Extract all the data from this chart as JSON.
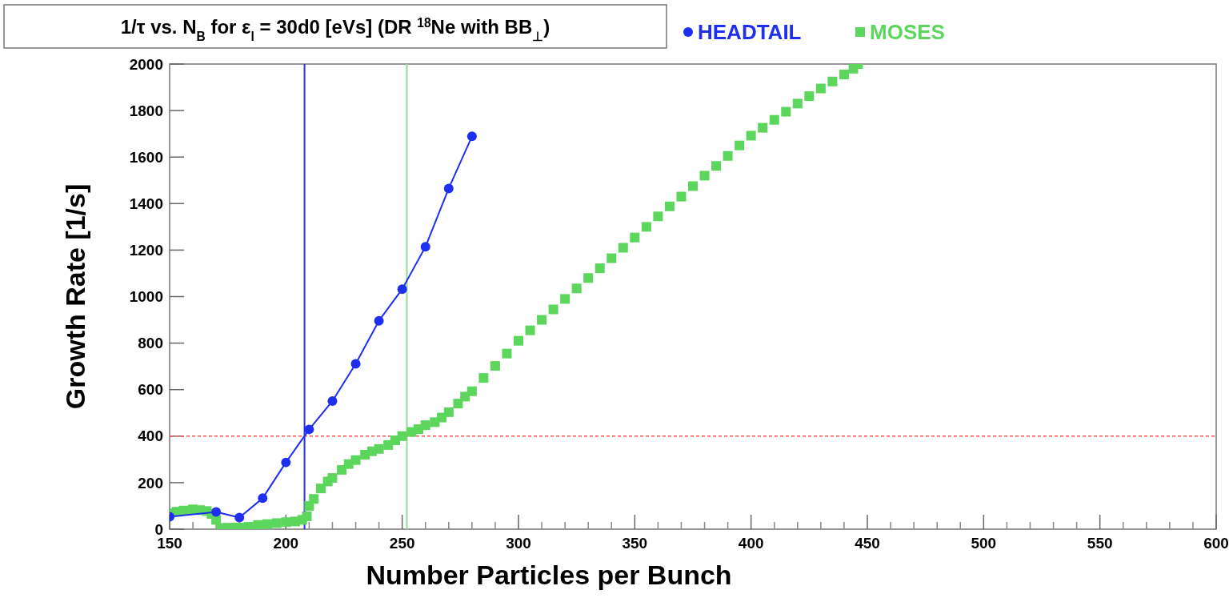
{
  "chart_data": {
    "type": "line",
    "title": "1/τ vs. N$_{B}$ for ε$_{l}$ = 30d0 [eVs] (DR $^{18}$Ne with BB$_{⊥}$)",
    "xlabel": "Number Particles per Bunch",
    "ylabel": "Growth Rate [1/s]",
    "xlim": [
      150,
      600
    ],
    "xticks": [
      150,
      200,
      250,
      300,
      350,
      400,
      450,
      500,
      550,
      600
    ],
    "ylim": [
      0,
      2000
    ],
    "yticks": [
      0,
      200,
      400,
      600,
      800,
      1000,
      1200,
      1400,
      1600,
      1800,
      2000
    ],
    "legend": "top",
    "grid": false,
    "series": [
      {
        "name": "HEADTAIL",
        "type": "line",
        "marker": "circle",
        "color": "#1f2ff0",
        "x": [
          150,
          170,
          180,
          190,
          200,
          210,
          220,
          230,
          240,
          250,
          260,
          270,
          280
        ],
        "values": [
          53,
          74,
          50,
          133,
          287,
          429,
          551,
          711,
          896,
          1032,
          1214,
          1465,
          1689
        ]
      },
      {
        "name": "MOSES",
        "type": "scatter",
        "marker": "square",
        "color": "#5cd65c",
        "x": [
          150,
          153,
          156,
          160,
          163,
          166,
          168,
          170,
          172,
          175,
          178,
          180,
          184,
          188,
          192,
          196,
          200,
          204,
          207,
          209,
          210,
          212,
          215,
          218,
          220,
          224,
          227,
          230,
          234,
          237,
          240,
          244,
          247,
          250,
          254,
          257,
          260,
          264,
          267,
          270,
          274,
          277,
          280,
          285,
          290,
          295,
          300,
          305,
          310,
          315,
          320,
          325,
          330,
          335,
          340,
          345,
          350,
          355,
          360,
          365,
          370,
          375,
          380,
          385,
          390,
          395,
          400,
          405,
          410,
          415,
          420,
          425,
          430,
          435,
          440,
          444,
          446
        ],
        "values": [
          68,
          75,
          80,
          85,
          82,
          78,
          65,
          40,
          5,
          6,
          7,
          7,
          10,
          18,
          22,
          26,
          30,
          33,
          40,
          55,
          100,
          130,
          175,
          205,
          220,
          255,
          280,
          297,
          320,
          335,
          345,
          362,
          382,
          400,
          418,
          430,
          447,
          460,
          480,
          503,
          540,
          570,
          593,
          650,
          702,
          755,
          810,
          855,
          900,
          945,
          990,
          1035,
          1080,
          1122,
          1165,
          1210,
          1254,
          1300,
          1345,
          1388,
          1430,
          1475,
          1520,
          1562,
          1605,
          1650,
          1692,
          1726,
          1760,
          1795,
          1830,
          1862,
          1895,
          1925,
          1955,
          1980,
          2000
        ]
      }
    ],
    "ref_lines": [
      {
        "axis": "x",
        "value": 208,
        "color": "#1f2ff0",
        "line_style": "solid"
      },
      {
        "axis": "x",
        "value": 252,
        "color": "#8ee08e",
        "line_style": "solid"
      },
      {
        "axis": "y",
        "value": 400,
        "color": "#ff5050",
        "line_style": "dashed"
      }
    ]
  }
}
